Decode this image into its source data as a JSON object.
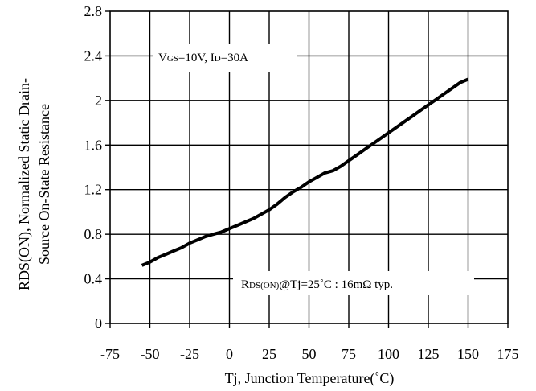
{
  "chart_data": {
    "type": "line",
    "title": "",
    "xlabel": "Tj, Junction Temperature(˚C)",
    "ylabel_line1": "RDS(ON), Normalized Static Drain-",
    "ylabel_line2": "Source On-State Resistance",
    "xlim": [
      -75,
      175
    ],
    "ylim": [
      0,
      2.8
    ],
    "x_ticks": [
      "-75",
      "-50",
      "-25",
      "0",
      "25",
      "50",
      "75",
      "100",
      "125",
      "150",
      "175"
    ],
    "y_ticks": [
      "0",
      "0.4",
      "0.8",
      "1.2",
      "1.6",
      "2",
      "2.4",
      "2.8"
    ],
    "x_tick_values": [
      -75,
      -50,
      -25,
      0,
      25,
      50,
      75,
      100,
      125,
      150,
      175
    ],
    "y_tick_values": [
      0,
      0.4,
      0.8,
      1.2,
      1.6,
      2.0,
      2.4,
      2.8
    ],
    "grid": true,
    "series": [
      {
        "x": [
          -55,
          -50,
          -45,
          -40,
          -35,
          -30,
          -25,
          -20,
          -15,
          -10,
          -5,
          0,
          5,
          10,
          15,
          20,
          25,
          30,
          35,
          40,
          45,
          50,
          55,
          60,
          65,
          70,
          75,
          80,
          85,
          90,
          95,
          100,
          105,
          110,
          115,
          120,
          125,
          130,
          135,
          140,
          145,
          150
        ],
        "values": [
          0.52,
          0.55,
          0.59,
          0.62,
          0.65,
          0.68,
          0.72,
          0.75,
          0.78,
          0.8,
          0.82,
          0.85,
          0.88,
          0.91,
          0.94,
          0.98,
          1.02,
          1.07,
          1.13,
          1.18,
          1.22,
          1.27,
          1.31,
          1.35,
          1.37,
          1.41,
          1.46,
          1.51,
          1.56,
          1.61,
          1.66,
          1.71,
          1.76,
          1.81,
          1.86,
          1.91,
          1.96,
          2.01,
          2.06,
          2.11,
          2.16,
          2.19
        ]
      }
    ],
    "annotations": {
      "condition": {
        "main1": "V",
        "sub1": "GS",
        "main2": "=10V, I",
        "sub2": "D",
        "main3": "=30A"
      },
      "typical": {
        "main1": "R",
        "sub1": "DS(ON)",
        "main2": "@Tj=25˚C : 16mΩ  typ."
      }
    },
    "colors": {
      "line": "#000000",
      "grid": "#000000",
      "background": "#ffffff"
    }
  }
}
